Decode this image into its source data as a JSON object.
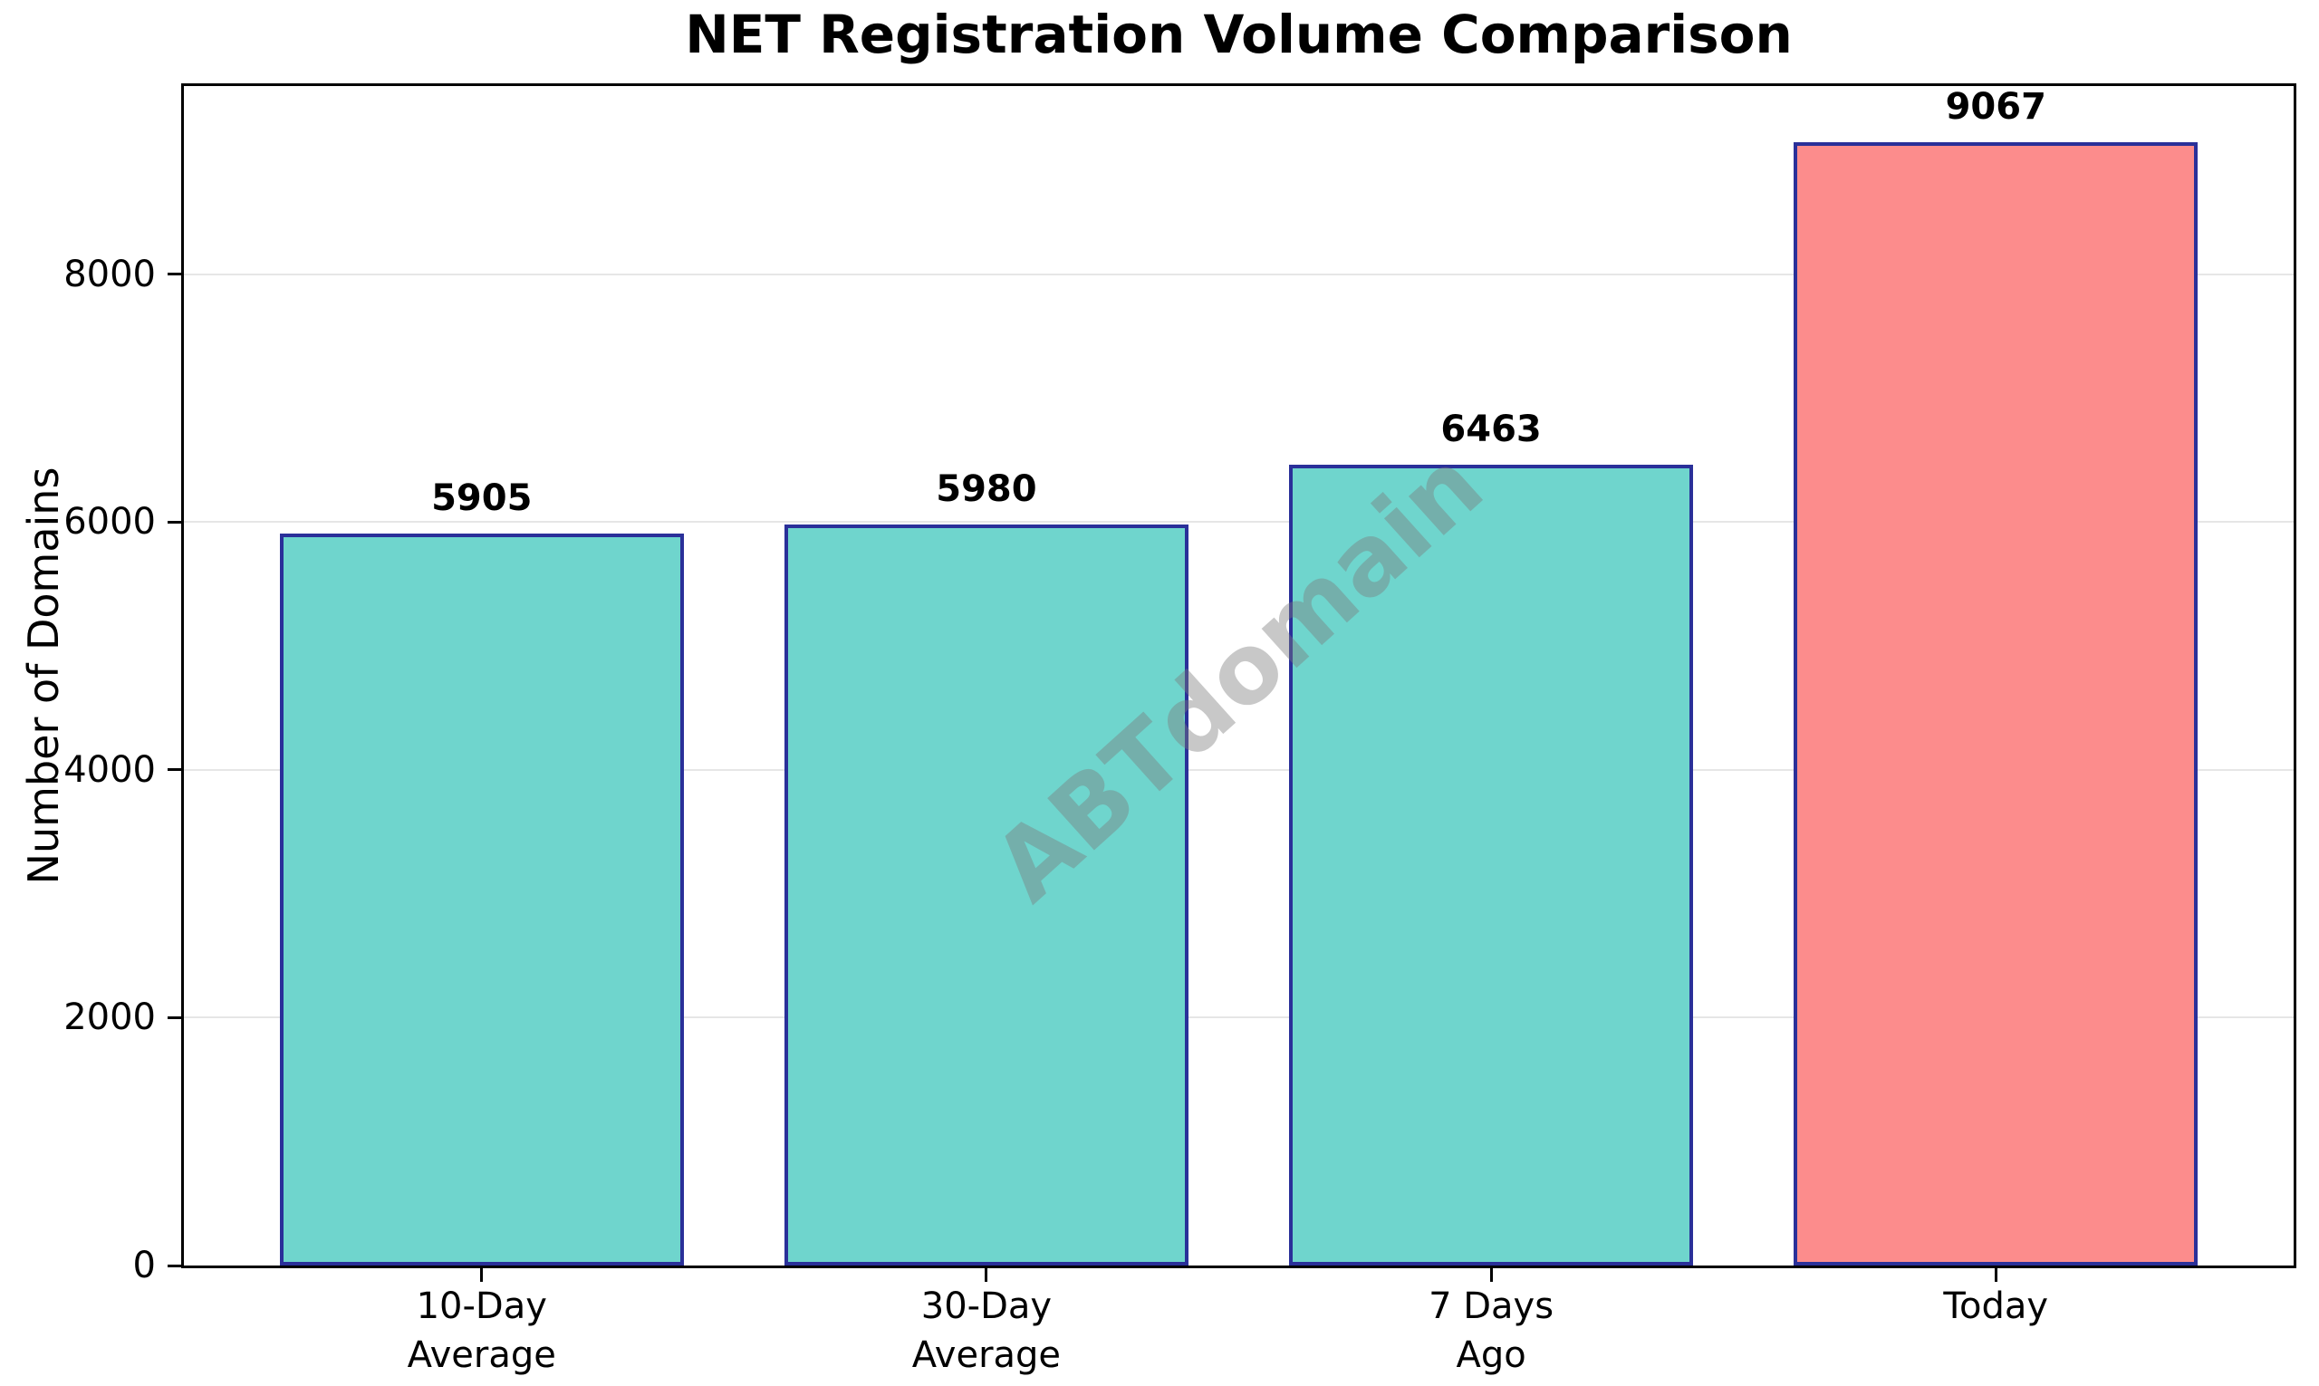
{
  "chart_data": {
    "type": "bar",
    "title": "NET Registration Volume Comparison",
    "xlabel": "",
    "ylabel": "Number of Domains",
    "categories": [
      "10-Day\nAverage",
      "30-Day\nAverage",
      "7 Days\nAgo",
      "Today"
    ],
    "values": [
      5905,
      5980,
      6463,
      9067
    ],
    "value_labels": [
      "5905",
      "5980",
      "6463",
      "9067"
    ],
    "bar_colors": [
      "#6FD5CD",
      "#6FD5CD",
      "#6FD5CD",
      "#FC8C8C"
    ],
    "bar_edge_color": "#2A3099",
    "ylim": [
      0,
      9520
    ],
    "yticks": [
      0,
      2000,
      4000,
      6000,
      8000
    ],
    "grid": true,
    "grid_color": "#E6E6E6",
    "legend_position": "none",
    "watermark": "ABTdomain",
    "background_color": "#FFFFFF"
  }
}
